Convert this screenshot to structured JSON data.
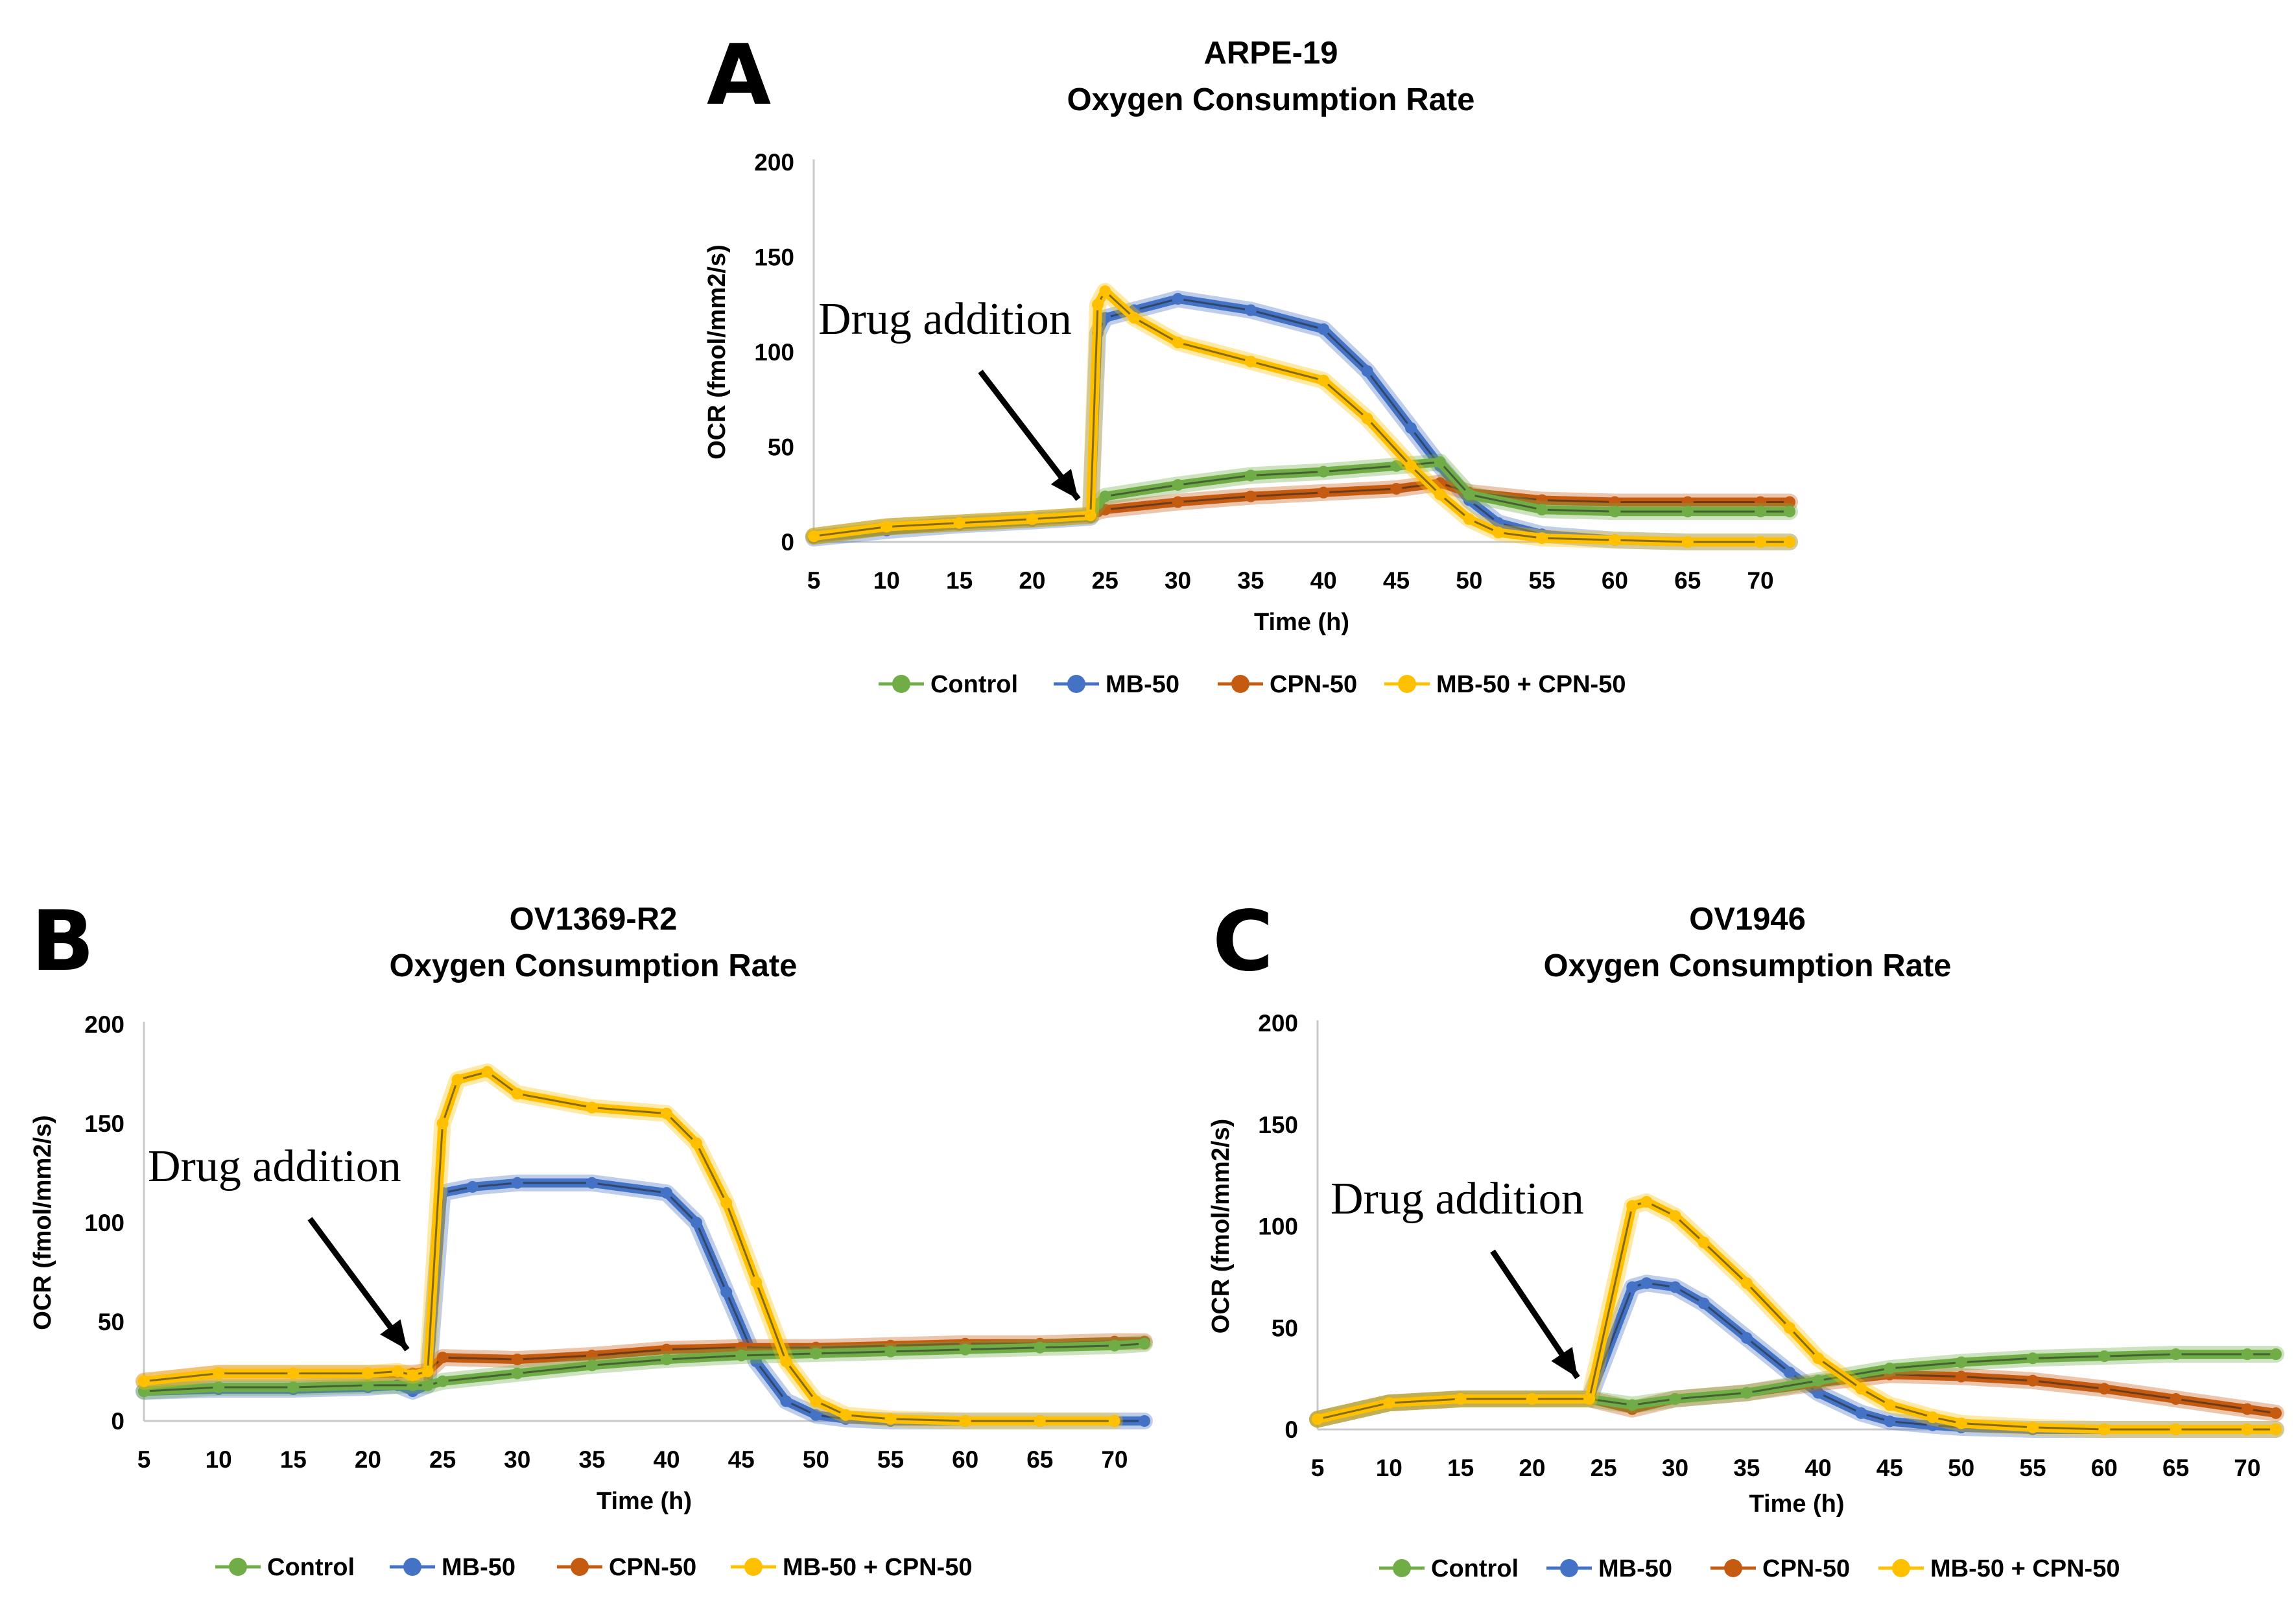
{
  "chart_data": [
    {
      "type": "line",
      "panel": "A",
      "title": "ARPE-19",
      "subtitle": "Oxygen Consumption Rate",
      "xlabel": "Time (h)",
      "ylabel": "OCR (fmol/mm2/s)",
      "xlim": [
        5,
        72
      ],
      "ylim": [
        0,
        200
      ],
      "x_ticks": [
        5,
        10,
        15,
        20,
        25,
        30,
        35,
        40,
        45,
        50,
        55,
        60,
        65,
        70
      ],
      "y_ticks": [
        0,
        50,
        100,
        150,
        200
      ],
      "annotation": {
        "text": "Drug addition",
        "x": 24,
        "y": 10
      },
      "series": [
        {
          "name": "Control",
          "color": "#70ad47",
          "x": [
            5,
            10,
            15,
            20,
            24,
            24.5,
            25,
            30,
            35,
            40,
            45,
            48,
            50,
            55,
            60,
            65,
            70,
            72
          ],
          "y": [
            3,
            8,
            10,
            12,
            14,
            20,
            24,
            30,
            35,
            37,
            40,
            42,
            25,
            17,
            16,
            16,
            16,
            16
          ]
        },
        {
          "name": "MB-50",
          "color": "#4472c4",
          "x": [
            5,
            10,
            15,
            20,
            24,
            24.5,
            25,
            27,
            30,
            35,
            40,
            43,
            46,
            48,
            50,
            52,
            55,
            60,
            65,
            70,
            72
          ],
          "y": [
            2,
            6,
            9,
            11,
            13,
            110,
            118,
            122,
            128,
            122,
            112,
            90,
            60,
            40,
            22,
            10,
            4,
            1,
            0,
            0,
            0
          ]
        },
        {
          "name": "CPN-50",
          "color": "#c55a11",
          "x": [
            5,
            10,
            15,
            20,
            24,
            24.5,
            25,
            30,
            35,
            40,
            45,
            48,
            50,
            55,
            60,
            65,
            70,
            72
          ],
          "y": [
            3,
            8,
            10,
            12,
            14,
            16,
            17,
            21,
            24,
            26,
            28,
            31,
            26,
            22,
            21,
            21,
            21,
            21
          ]
        },
        {
          "name": "MB-50 + CPN-50",
          "color": "#ffc000",
          "x": [
            5,
            10,
            15,
            20,
            24,
            24.5,
            25,
            27,
            30,
            35,
            40,
            43,
            46,
            48,
            50,
            52,
            55,
            60,
            65,
            70,
            72
          ],
          "y": [
            3,
            8,
            10,
            12,
            14,
            125,
            132,
            118,
            105,
            95,
            85,
            65,
            40,
            25,
            12,
            5,
            2,
            1,
            0,
            0,
            0
          ]
        }
      ]
    },
    {
      "type": "line",
      "panel": "B",
      "title": "OV1369-R2",
      "subtitle": "Oxygen Consumption Rate",
      "xlabel": "Time (h)",
      "ylabel": "OCR (fmol/mm2/s)",
      "xlim": [
        5,
        72
      ],
      "ylim": [
        0,
        200
      ],
      "x_ticks": [
        5,
        10,
        15,
        20,
        25,
        30,
        35,
        40,
        45,
        50,
        55,
        60,
        65,
        70
      ],
      "y_ticks": [
        0,
        50,
        100,
        150,
        200
      ],
      "annotation": {
        "text": "Drug addition",
        "x": 23.5,
        "y": 25
      },
      "series": [
        {
          "name": "Control",
          "color": "#70ad47",
          "x": [
            5,
            10,
            15,
            20,
            23,
            24,
            25,
            30,
            35,
            40,
            45,
            50,
            55,
            60,
            65,
            70,
            72
          ],
          "y": [
            15,
            17,
            17,
            18,
            18,
            18,
            20,
            24,
            28,
            31,
            33,
            34,
            35,
            36,
            37,
            38,
            39
          ]
        },
        {
          "name": "MB-50",
          "color": "#4472c4",
          "x": [
            5,
            10,
            15,
            20,
            22,
            23,
            24,
            25,
            27,
            30,
            35,
            40,
            42,
            44,
            46,
            48,
            50,
            52,
            55,
            60,
            65,
            70,
            72
          ],
          "y": [
            15,
            16,
            16,
            17,
            18,
            15,
            18,
            115,
            118,
            120,
            120,
            115,
            100,
            65,
            30,
            10,
            3,
            1,
            0,
            0,
            0,
            0,
            0
          ]
        },
        {
          "name": "CPN-50",
          "color": "#c55a11",
          "x": [
            5,
            10,
            15,
            20,
            23,
            24,
            25,
            30,
            35,
            40,
            45,
            50,
            55,
            60,
            65,
            70,
            72
          ],
          "y": [
            20,
            24,
            24,
            24,
            24,
            25,
            32,
            31,
            33,
            36,
            37,
            37,
            38,
            39,
            39,
            40,
            40
          ]
        },
        {
          "name": "MB-50 + CPN-50",
          "color": "#ffc000",
          "x": [
            5,
            10,
            15,
            20,
            22,
            23,
            24,
            25,
            26,
            28,
            30,
            35,
            40,
            42,
            44,
            46,
            48,
            50,
            52,
            55,
            60,
            65,
            70
          ],
          "y": [
            20,
            24,
            24,
            24,
            25,
            23,
            25,
            150,
            172,
            176,
            165,
            158,
            155,
            140,
            110,
            70,
            30,
            10,
            3,
            1,
            0,
            0,
            0
          ]
        }
      ]
    },
    {
      "type": "line",
      "panel": "C",
      "title": "OV1946",
      "subtitle": "Oxygen Consumption Rate",
      "xlabel": "Time (h)",
      "ylabel": "OCR (fmol/mm2/s)",
      "xlim": [
        5,
        72
      ],
      "ylim": [
        0,
        200
      ],
      "x_ticks": [
        5,
        10,
        15,
        20,
        25,
        30,
        35,
        40,
        45,
        50,
        55,
        60,
        65,
        70
      ],
      "y_ticks": [
        0,
        50,
        100,
        150,
        200
      ],
      "annotation": {
        "text": "Drug addition",
        "x": 24,
        "y": 15
      },
      "series": [
        {
          "name": "Control",
          "color": "#70ad47",
          "x": [
            5,
            10,
            15,
            20,
            24,
            27,
            30,
            35,
            40,
            45,
            50,
            55,
            60,
            65,
            70,
            72
          ],
          "y": [
            5,
            13,
            15,
            15,
            15,
            12,
            15,
            18,
            24,
            30,
            33,
            35,
            36,
            37,
            37,
            37
          ]
        },
        {
          "name": "MB-50",
          "color": "#4472c4",
          "x": [
            5,
            10,
            15,
            20,
            24,
            27,
            28,
            30,
            32,
            35,
            38,
            40,
            43,
            45,
            48,
            50,
            55,
            60,
            65,
            70,
            72
          ],
          "y": [
            5,
            13,
            15,
            15,
            15,
            70,
            72,
            70,
            62,
            45,
            28,
            18,
            8,
            4,
            2,
            1,
            0,
            0,
            0,
            0,
            0
          ]
        },
        {
          "name": "CPN-50",
          "color": "#c55a11",
          "x": [
            5,
            10,
            15,
            20,
            24,
            27,
            30,
            35,
            40,
            45,
            50,
            55,
            60,
            65,
            70,
            72
          ],
          "y": [
            5,
            13,
            15,
            15,
            15,
            10,
            15,
            18,
            23,
            27,
            26,
            24,
            20,
            15,
            10,
            8
          ]
        },
        {
          "name": "MB-50 + CPN-50",
          "color": "#ffc000",
          "x": [
            5,
            10,
            15,
            20,
            24,
            27,
            28,
            30,
            32,
            35,
            38,
            40,
            43,
            45,
            48,
            50,
            55,
            60,
            65,
            70,
            72
          ],
          "y": [
            5,
            13,
            15,
            15,
            15,
            110,
            112,
            105,
            92,
            72,
            50,
            35,
            20,
            12,
            6,
            3,
            1,
            0,
            0,
            0,
            0
          ]
        }
      ]
    }
  ]
}
